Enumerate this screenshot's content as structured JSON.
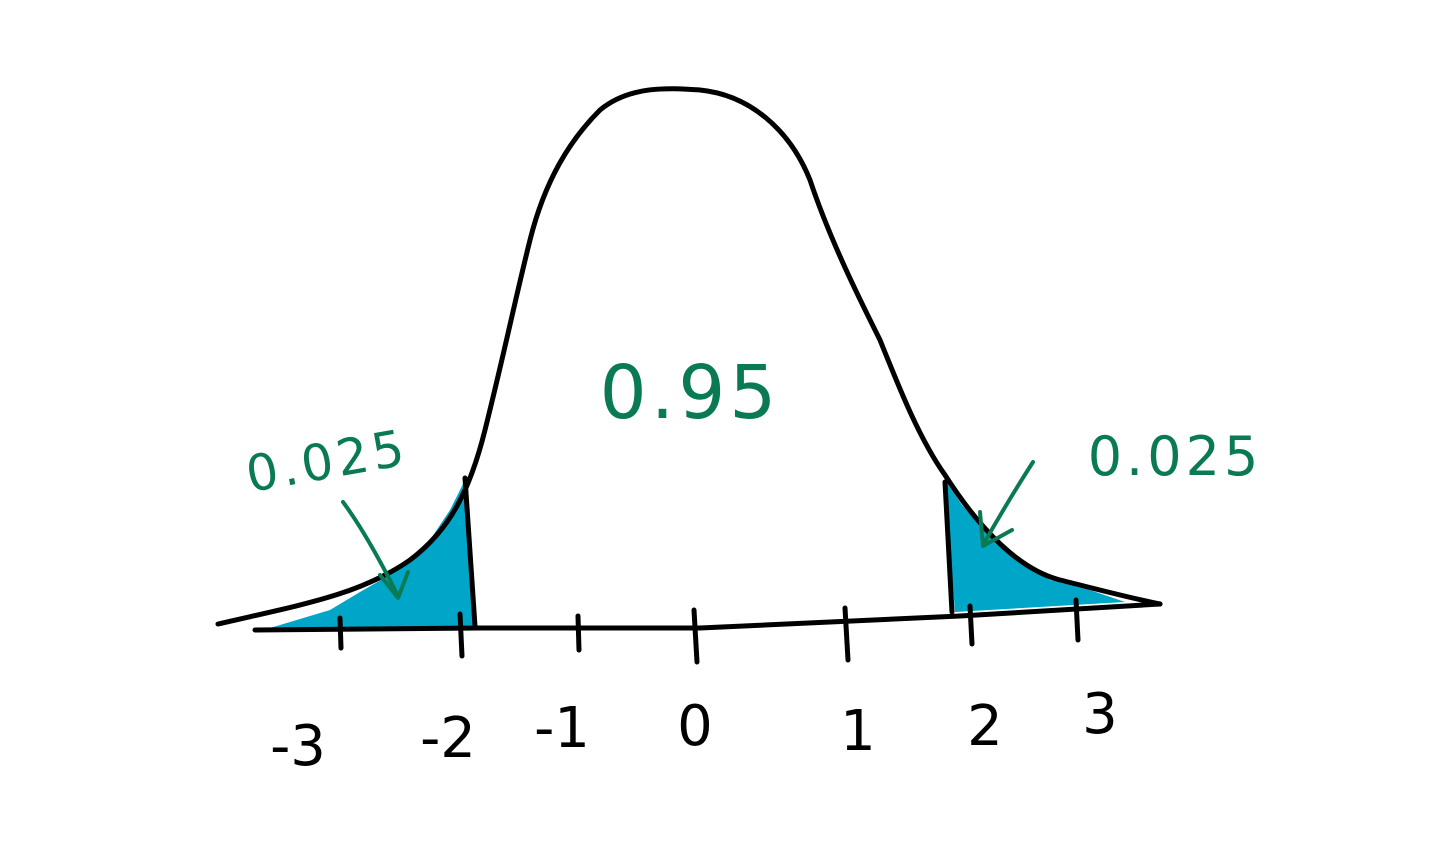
{
  "tick_labels": [
    "-3",
    "-2",
    "-1",
    "0",
    "1",
    "2",
    "3"
  ],
  "center_area_label": "0.95",
  "left_tail_label": "0.025",
  "right_tail_label": "0.025",
  "colors": {
    "ink": "#000000",
    "tail_fill": "#00a6c7",
    "annotation": "#0a7a55",
    "background": "#ffffff"
  }
}
